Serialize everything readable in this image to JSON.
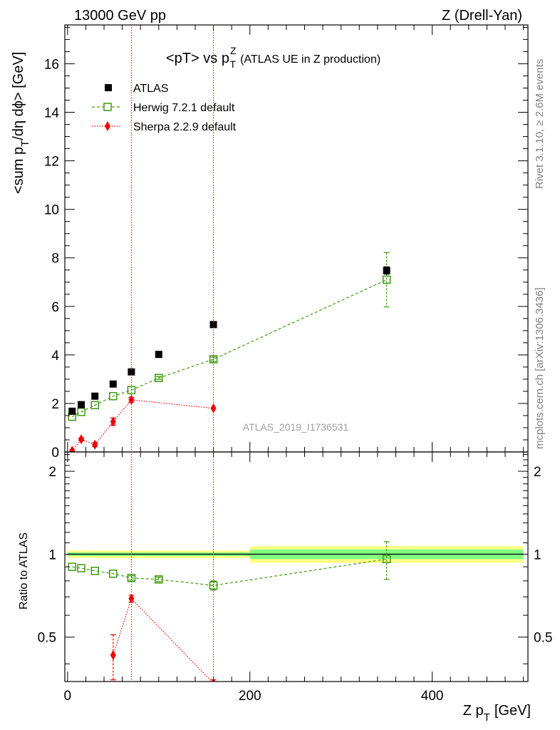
{
  "header": {
    "left": "13000 GeV pp",
    "right": "Z (Drell-Yan)"
  },
  "side": {
    "rivet": "Rivet 3.1.10, ≥ 2.6M events",
    "mcplots": "mcplots.cern.ch [arXiv:1306.3436]"
  },
  "colors": {
    "data": "#000000",
    "herwig": "#3f9a0f",
    "sherpa": "#ee0000",
    "band_inner": "#80ff80",
    "band_outer": "#ffff88"
  },
  "chart_data": [
    {
      "type": "scatter",
      "panel": "main",
      "title_main": "<pT> vs p",
      "title_sup": "Z",
      "title_sub": "T",
      "title_rest": "(ATLAS UE in Z production)",
      "ylabel_main": "<sum p",
      "ylabel_sub": "T",
      "ylabel_rest": "/dη dϕ> [GeV]",
      "analysis_label": "ATLAS_2019_I1736531",
      "xlim": [
        -3,
        505
      ],
      "ylim": [
        0,
        17.6
      ],
      "yticks": [
        0,
        2,
        4,
        6,
        8,
        10,
        12,
        14,
        16
      ],
      "ytick_labels": [
        "0",
        "2",
        "4",
        "6",
        "8",
        "10",
        "12",
        "14",
        "16"
      ],
      "legend_position": "top-left",
      "vlines_x": [
        70,
        160
      ],
      "series": [
        {
          "name": "ATLAS",
          "marker": "square-filled",
          "x": [
            5,
            15,
            30,
            50,
            70,
            100,
            160,
            350
          ],
          "y": [
            1.68,
            1.95,
            2.3,
            2.8,
            3.3,
            4.02,
            5.25,
            7.48
          ],
          "yerr": [
            0.03,
            0.03,
            0.04,
            0.05,
            0.06,
            0.07,
            0.1,
            0.15
          ]
        },
        {
          "name": "Herwig 7.2.1 default",
          "marker": "square-open",
          "line": "dashed",
          "x": [
            5,
            15,
            30,
            50,
            70,
            100,
            160,
            350
          ],
          "y": [
            1.45,
            1.65,
            1.93,
            2.3,
            2.55,
            3.05,
            3.82,
            7.1
          ],
          "yerr": [
            0.02,
            0.02,
            0.03,
            0.03,
            0.05,
            0.06,
            0.09,
            1.12
          ]
        },
        {
          "name": "Sherpa 2.2.9 default",
          "marker": "diamond-filled",
          "line": "dotted",
          "x": [
            5,
            15,
            30,
            50,
            70,
            160
          ],
          "y": [
            0.05,
            0.52,
            0.3,
            1.25,
            2.15,
            1.8
          ],
          "yerr": [
            0.04,
            0.06,
            0.08,
            0.15,
            0.1,
            0.05
          ]
        }
      ]
    },
    {
      "type": "scatter",
      "panel": "ratio",
      "ylabel": "Ratio to ATLAS",
      "xlabel_main": "Z p",
      "xlabel_sub": "T",
      "xlabel_rest": "[GeV]",
      "xlim": [
        -3,
        505
      ],
      "ylim": [
        0.345,
        2.35
      ],
      "log_y": true,
      "yticks": [
        0.5,
        1,
        2
      ],
      "ytick_labels": [
        "0.5",
        "1",
        "2"
      ],
      "xticks": [
        0,
        200,
        400
      ],
      "xtick_labels": [
        "0",
        "200",
        "400"
      ],
      "bands": [
        {
          "x": [
            0,
            200
          ],
          "inner": [
            0.985,
            1.015
          ],
          "outer": [
            0.968,
            1.032
          ]
        },
        {
          "x": [
            200,
            500
          ],
          "inner": [
            0.96,
            1.04
          ],
          "outer": [
            0.93,
            1.07
          ]
        }
      ],
      "series": [
        {
          "name": "Herwig 7.2.1 default",
          "x": [
            5,
            15,
            30,
            50,
            70,
            100,
            160,
            350
          ],
          "y": [
            0.9,
            0.89,
            0.87,
            0.85,
            0.82,
            0.81,
            0.77,
            0.96
          ],
          "yerr": [
            0.01,
            0.01,
            0.01,
            0.01,
            0.015,
            0.015,
            0.03,
            0.15
          ]
        },
        {
          "name": "Sherpa 2.2.9 default",
          "x": [
            50,
            70,
            160
          ],
          "y": [
            0.43,
            0.69,
            0.34
          ],
          "yerr": [
            0.08,
            0.02,
            0.01
          ]
        }
      ]
    }
  ]
}
